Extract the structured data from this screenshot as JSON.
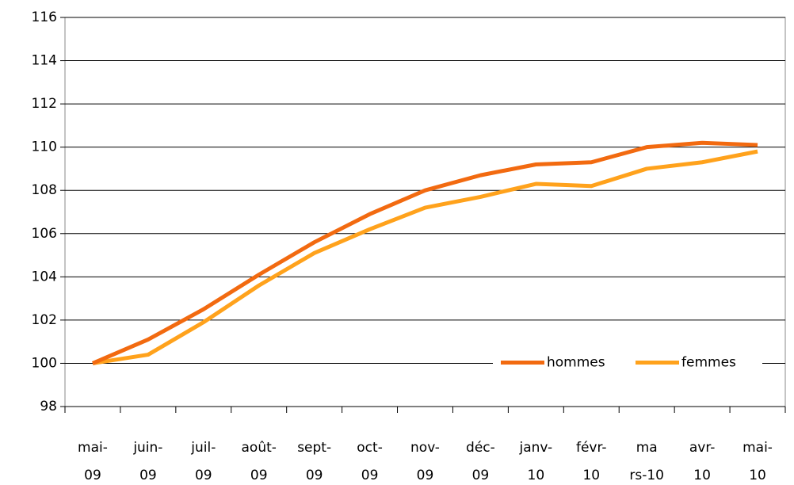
{
  "chart_data": {
    "type": "line",
    "categories": [
      [
        "mai-",
        "09"
      ],
      [
        "juin-",
        "09"
      ],
      [
        "juil-",
        "09"
      ],
      [
        "août-",
        "09"
      ],
      [
        "sept-",
        "09"
      ],
      [
        "oct-",
        "09"
      ],
      [
        "nov-",
        "09"
      ],
      [
        "déc-",
        "09"
      ],
      [
        "janv-",
        "10"
      ],
      [
        "févr-",
        "10"
      ],
      [
        "ma",
        "rs-10"
      ],
      [
        "avr-",
        "10"
      ],
      [
        "mai-",
        "10"
      ]
    ],
    "series": [
      {
        "name": "hommes",
        "color": "#f26a10",
        "values": [
          100,
          101.1,
          102.5,
          104.1,
          105.6,
          106.9,
          108.0,
          108.7,
          109.2,
          109.3,
          110.0,
          110.2,
          110.1
        ]
      },
      {
        "name": "femmes",
        "color": "#ffa21c",
        "values": [
          100,
          100.4,
          101.9,
          103.6,
          105.1,
          106.2,
          107.2,
          107.7,
          108.3,
          108.2,
          109.0,
          109.3,
          109.8
        ]
      }
    ],
    "ylim": [
      98,
      116
    ],
    "yticks": [
      98,
      100,
      102,
      104,
      106,
      108,
      110,
      112,
      114,
      116
    ],
    "grid": true,
    "legend": "lower right"
  }
}
